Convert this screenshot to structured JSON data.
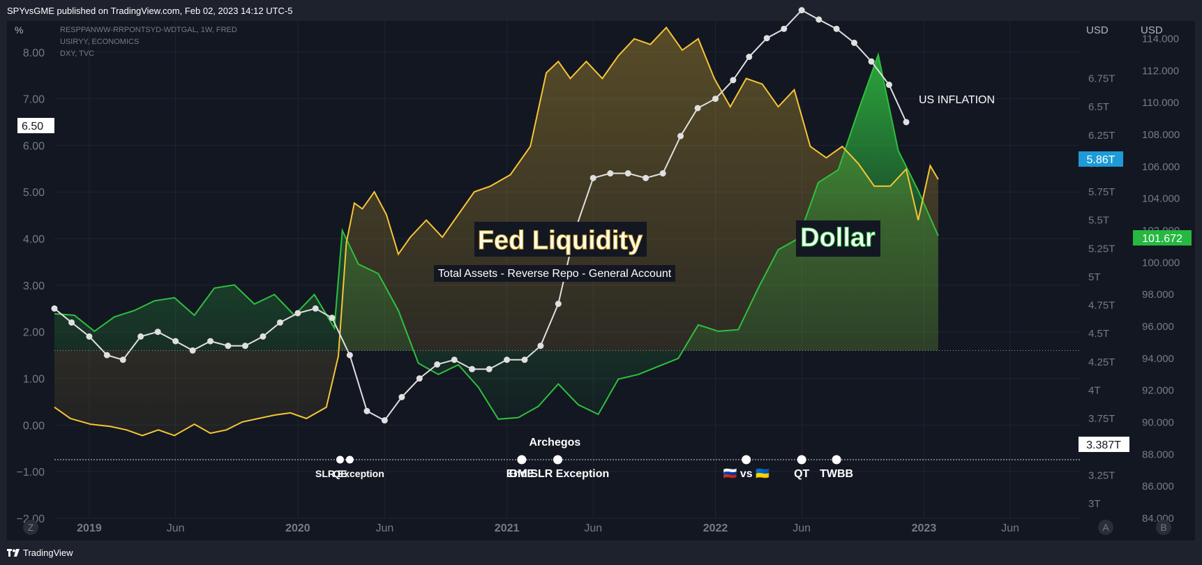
{
  "header": {
    "title": "SPYvsGME published on TradingView.com, Feb 02, 2023 14:12 UTC-5"
  },
  "footer": {
    "brand": "TradingView"
  },
  "legend_lines": [
    "RESPPANWW-RRPONTSYD-WDTGAL, 1W, FRED",
    "USIRYY, ECONOMICS",
    "DXY, TVC"
  ],
  "axis_units": {
    "left": "%",
    "right1": "USD",
    "right2": "USD"
  },
  "badges": {
    "left": "6.50",
    "liquidity_last": "5.86T",
    "dollar_last": "101.672",
    "liquidity_line": "3.387T"
  },
  "scale_buttons": {
    "left": "Z",
    "auto": "A",
    "scale": "B"
  },
  "colors": {
    "background": "#131722",
    "liquidity": "#f7c534",
    "dollar": "#2fbf3f",
    "inflation": "#e0e0e0",
    "badge_blue": "#1e9bd7",
    "badge_green": "#26b841",
    "text_dim": "#787b86"
  },
  "chart_data": {
    "type": "line",
    "title": "",
    "x_ticks": [
      "2019",
      "Jun",
      "2020",
      "Jun",
      "2021",
      "Jun",
      "2022",
      "Jun",
      "2023",
      "Jun"
    ],
    "left_axis": {
      "label": "%",
      "ticks": [
        "8.00",
        "7.00",
        "6.00",
        "5.00",
        "4.00",
        "3.00",
        "2.00",
        "1.00",
        "0.00",
        "−1.00",
        "−2.00"
      ],
      "range": [
        -2,
        8.7
      ]
    },
    "right_axis_1": {
      "label": "USD",
      "ticks": [
        "6.75T",
        "6.5T",
        "6.25T",
        "6T",
        "5.75T",
        "5.5T",
        "5.25T",
        "5T",
        "4.75T",
        "4.5T",
        "4.25T",
        "4T",
        "3.75T",
        "3.5T",
        "3.25T",
        "3T"
      ],
      "range_trillions": [
        2.87,
        7.27
      ]
    },
    "right_axis_2": {
      "label": "USD",
      "ticks": [
        "114.000",
        "112.000",
        "110.000",
        "108.000",
        "106.000",
        "104.000",
        "102.000",
        "100.000",
        "98.000",
        "96.000",
        "94.000",
        "92.000",
        "90.000",
        "88.000",
        "86.000",
        "84.000"
      ],
      "range": [
        84,
        115.2
      ]
    },
    "series": [
      {
        "name": "RESPPANWW-RRPONTSYD-WDTGAL, 1W, FRED",
        "axis": "right_axis_1",
        "unit": "USD trillions",
        "color": "#f7c534",
        "x": [
          "2018-11-01",
          "2018-11-29",
          "2019-01-03",
          "2019-02-07",
          "2019-03-07",
          "2019-04-04",
          "2019-05-02",
          "2019-05-30",
          "2019-07-04",
          "2019-08-01",
          "2019-08-29",
          "2019-09-26",
          "2019-10-24",
          "2019-11-21",
          "2019-12-19",
          "2020-01-16",
          "2020-02-20",
          "2020-03-12",
          "2020-03-26",
          "2020-04-09",
          "2020-04-23",
          "2020-05-14",
          "2020-06-04",
          "2020-06-25",
          "2020-07-16",
          "2020-08-13",
          "2020-09-10",
          "2020-10-08",
          "2020-11-05",
          "2020-12-03",
          "2021-01-07",
          "2021-02-11",
          "2021-03-11",
          "2021-04-01",
          "2021-04-22",
          "2021-05-20",
          "2021-06-17",
          "2021-07-15",
          "2021-08-12",
          "2021-09-09",
          "2021-10-07",
          "2021-11-04",
          "2021-12-02",
          "2021-12-30",
          "2022-01-27",
          "2022-02-24",
          "2022-03-24",
          "2022-04-21",
          "2022-05-19",
          "2022-06-16",
          "2022-07-14",
          "2022-08-11",
          "2022-09-08",
          "2022-10-06",
          "2022-11-03",
          "2022-12-01",
          "2022-12-22",
          "2023-01-12",
          "2023-01-26"
        ],
        "values": [
          3.85,
          3.75,
          3.7,
          3.68,
          3.65,
          3.6,
          3.65,
          3.6,
          3.7,
          3.62,
          3.65,
          3.72,
          3.75,
          3.78,
          3.8,
          3.75,
          3.85,
          4.3,
          5.3,
          5.65,
          5.6,
          5.75,
          5.55,
          5.2,
          5.35,
          5.5,
          5.35,
          5.55,
          5.75,
          5.8,
          5.9,
          6.15,
          6.8,
          6.9,
          6.75,
          6.9,
          6.75,
          6.95,
          7.1,
          7.05,
          7.2,
          7.0,
          7.1,
          6.75,
          6.5,
          6.75,
          6.7,
          6.5,
          6.65,
          6.15,
          6.05,
          6.15,
          6.0,
          5.8,
          5.8,
          5.95,
          5.5,
          5.98,
          5.86
        ]
      },
      {
        "name": "USIRYY, ECONOMICS",
        "axis": "left_axis",
        "unit": "%",
        "color": "#e0e0e0",
        "x": [
          "2018-11-01",
          "2018-12-01",
          "2019-01-01",
          "2019-02-01",
          "2019-03-01",
          "2019-04-01",
          "2019-05-01",
          "2019-06-01",
          "2019-07-01",
          "2019-08-01",
          "2019-09-01",
          "2019-10-01",
          "2019-11-01",
          "2019-12-01",
          "2020-01-01",
          "2020-02-01",
          "2020-03-01",
          "2020-04-01",
          "2020-05-01",
          "2020-06-01",
          "2020-07-01",
          "2020-08-01",
          "2020-09-01",
          "2020-10-01",
          "2020-11-01",
          "2020-12-01",
          "2021-01-01",
          "2021-02-01",
          "2021-03-01",
          "2021-04-01",
          "2021-05-01",
          "2021-06-01",
          "2021-07-01",
          "2021-08-01",
          "2021-09-01",
          "2021-10-01",
          "2021-11-01",
          "2021-12-01",
          "2022-01-01",
          "2022-02-01",
          "2022-03-01",
          "2022-04-01",
          "2022-05-01",
          "2022-06-01",
          "2022-07-01",
          "2022-08-01",
          "2022-09-01",
          "2022-10-01",
          "2022-11-01",
          "2022-12-01"
        ],
        "values": [
          2.5,
          2.2,
          1.9,
          1.5,
          1.4,
          1.9,
          2.0,
          1.8,
          1.6,
          1.8,
          1.7,
          1.7,
          1.9,
          2.2,
          2.4,
          2.5,
          2.3,
          1.5,
          0.3,
          0.1,
          0.6,
          1.0,
          1.3,
          1.4,
          1.2,
          1.2,
          1.4,
          1.4,
          1.7,
          2.6,
          4.2,
          5.3,
          5.4,
          5.4,
          5.3,
          5.4,
          6.2,
          6.8,
          7.0,
          7.4,
          7.9,
          8.3,
          8.5,
          8.9,
          8.7,
          8.5,
          8.2,
          7.8,
          7.3,
          6.5
        ]
      },
      {
        "name": "DXY, TVC",
        "axis": "right_axis_2",
        "unit": "USD",
        "color": "#2fbf3f",
        "x": [
          "2018-11-01",
          "2018-12-06",
          "2019-01-10",
          "2019-02-14",
          "2019-03-21",
          "2019-04-25",
          "2019-05-30",
          "2019-07-04",
          "2019-08-08",
          "2019-09-12",
          "2019-10-17",
          "2019-11-21",
          "2019-12-26",
          "2020-01-30",
          "2020-03-05",
          "2020-03-19",
          "2020-04-16",
          "2020-05-21",
          "2020-06-25",
          "2020-07-30",
          "2020-09-03",
          "2020-10-08",
          "2020-11-12",
          "2020-12-17",
          "2021-01-21",
          "2021-02-25",
          "2021-04-01",
          "2021-05-06",
          "2021-06-10",
          "2021-07-15",
          "2021-08-19",
          "2021-09-23",
          "2021-10-28",
          "2021-12-02",
          "2022-01-06",
          "2022-02-10",
          "2022-03-17",
          "2022-04-21",
          "2022-05-26",
          "2022-06-30",
          "2022-08-04",
          "2022-09-08",
          "2022-10-13",
          "2022-11-17",
          "2022-12-22",
          "2023-01-26"
        ],
        "values": [
          96.8,
          96.7,
          95.7,
          96.6,
          97.0,
          97.6,
          97.8,
          96.7,
          98.4,
          98.6,
          97.4,
          98.0,
          96.7,
          98.0,
          95.9,
          102.0,
          99.9,
          99.3,
          97.0,
          93.7,
          93.0,
          93.6,
          92.2,
          90.2,
          90.3,
          91.0,
          92.4,
          91.1,
          90.5,
          92.7,
          93.0,
          93.5,
          94.0,
          96.1,
          95.7,
          95.8,
          98.4,
          100.8,
          101.5,
          105.0,
          105.8,
          109.5,
          113.0,
          107.0,
          104.5,
          101.672
        ]
      }
    ],
    "annotations": [
      {
        "label": "Fed Liquidity",
        "subtitle": "Total Assets - Reverse Repo - General Account"
      },
      {
        "label": "Dollar"
      },
      {
        "label": "US INFLATION"
      }
    ],
    "events": [
      {
        "label": "QE",
        "date": "2020-03-15",
        "style": "small"
      },
      {
        "label": "SLR Exception",
        "date": "2020-04-01",
        "style": "small"
      },
      {
        "label": "GME",
        "date": "2021-01-27",
        "style": "large"
      },
      {
        "label": "Archegos",
        "date": "2021-03-26",
        "style": "large",
        "above": true
      },
      {
        "label": "End SLR Exception",
        "date": "2021-03-31",
        "style": "large"
      },
      {
        "label": "🇷🇺 vs 🇺🇦",
        "date": "2022-02-24",
        "style": "large"
      },
      {
        "label": "QT",
        "date": "2022-06-01",
        "style": "large"
      },
      {
        "label": "TWBB",
        "date": "2022-08-01",
        "style": "large"
      }
    ],
    "grid": true,
    "dotted_reference_lines": [
      "4.35T",
      "3.387T"
    ]
  }
}
